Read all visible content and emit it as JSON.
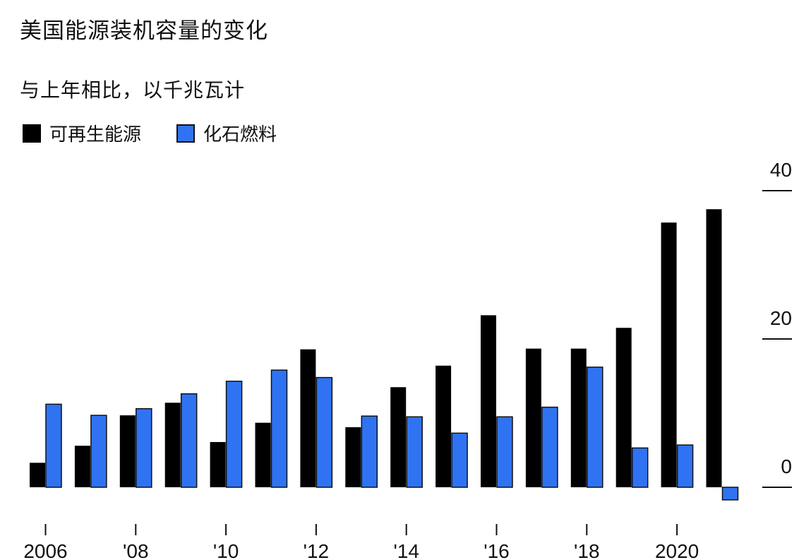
{
  "title": "美国能源装机容量的变化",
  "subtitle": "与上年相比，以千兆瓦计",
  "legend": {
    "renewable": "可再生能源",
    "fossil": "化石燃料"
  },
  "colors": {
    "renewable": "#000000",
    "fossil": "#2f73f2",
    "text": "#111111"
  },
  "chart_data": {
    "type": "bar",
    "title": "美国能源装机容量的变化",
    "subtitle": "与上年相比，以千兆瓦计",
    "categories": [
      "2006",
      "2007",
      "2008",
      "2009",
      "2010",
      "2011",
      "2012",
      "2013",
      "2014",
      "2015",
      "2016",
      "2017",
      "2018",
      "2019",
      "2020",
      "2021"
    ],
    "x_tick_labels": [
      {
        "category": "2006",
        "label": "2006"
      },
      {
        "category": "2008",
        "label": "'08"
      },
      {
        "category": "2010",
        "label": "'10"
      },
      {
        "category": "2012",
        "label": "'12"
      },
      {
        "category": "2014",
        "label": "'14"
      },
      {
        "category": "2016",
        "label": "'16"
      },
      {
        "category": "2018",
        "label": "'18"
      },
      {
        "category": "2020",
        "label": "2020"
      }
    ],
    "series": [
      {
        "name": "可再生能源",
        "values": [
          3.3,
          5.6,
          9.7,
          11.4,
          6.1,
          8.7,
          18.6,
          8.1,
          13.5,
          16.4,
          23.2,
          18.7,
          18.7,
          21.5,
          35.7,
          37.5
        ]
      },
      {
        "name": "化石燃料",
        "values": [
          11.2,
          9.7,
          10.6,
          12.6,
          14.3,
          15.8,
          14.8,
          9.6,
          9.5,
          7.3,
          9.5,
          10.8,
          16.2,
          5.3,
          5.7,
          -1.7
        ]
      }
    ],
    "y_ticks": [
      0,
      20,
      40
    ],
    "ylim": [
      -4,
      43
    ],
    "y_axis_position": "right",
    "grid": false,
    "legend_position": "top-left"
  }
}
